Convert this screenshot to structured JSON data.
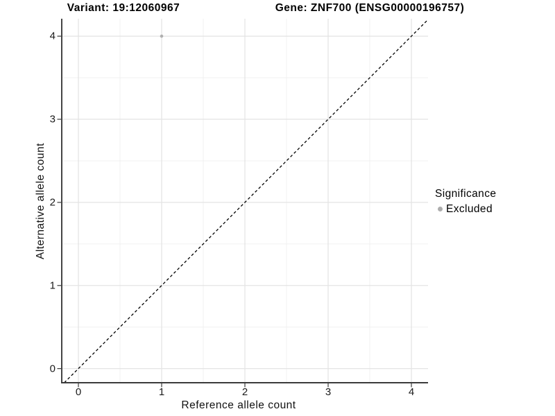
{
  "chart_data": {
    "type": "scatter",
    "titles": {
      "left": "Variant: 19:12060967",
      "right": "Gene: ZNF700 (ENSG00000196757)"
    },
    "xlabel": "Reference allele count",
    "ylabel": "Alternative allele count",
    "xlim": [
      -0.2,
      4.2
    ],
    "ylim": [
      -0.17,
      4.21
    ],
    "xticks": [
      0,
      1,
      2,
      3,
      4
    ],
    "yticks": [
      0,
      1,
      2,
      3,
      4
    ],
    "xminor": [
      0.5,
      1.5,
      2.5,
      3.5
    ],
    "yminor": [
      0.5,
      1.5,
      2.5,
      3.5
    ],
    "grid": {
      "on": true,
      "major_color": "#e4e4e4",
      "minor_color": "#f0f0f0"
    },
    "axis_color": "#3a3a3a",
    "background": "#ffffff",
    "identity_line": {
      "slope": 1,
      "intercept": 0,
      "style": "dashed",
      "color": "#000000"
    },
    "series": [
      {
        "name": "Excluded",
        "color": "#b0b0b0",
        "points": [
          {
            "x": 1,
            "y": 4
          }
        ]
      }
    ],
    "legend": {
      "title": "Significance",
      "position": "right",
      "entries": [
        {
          "label": "Excluded",
          "color": "#adadad"
        }
      ]
    }
  }
}
